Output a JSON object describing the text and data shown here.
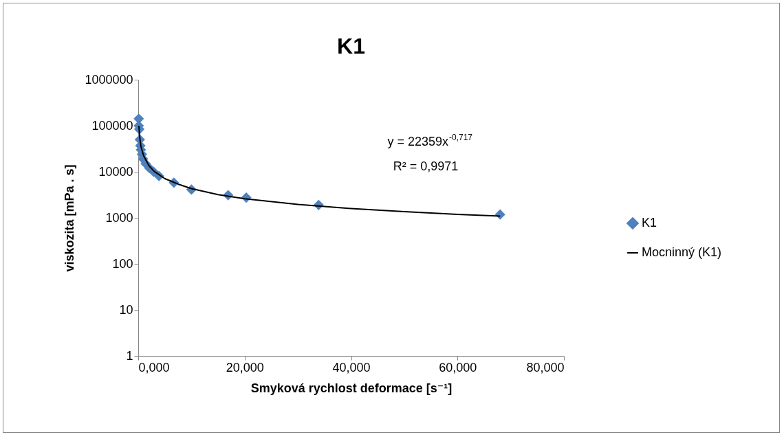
{
  "chart_data": {
    "type": "scatter",
    "title": "K1",
    "xlabel": "Smyková rychlost deformace [s⁻¹]",
    "ylabel": "viskozita [mPa . s]",
    "annotations": [
      "y = 22359x$^{-0,717}$",
      "R² = 0,9971"
    ],
    "log": "y",
    "legend": "right",
    "grid": false,
    "xlim": [
      0,
      80
    ],
    "xticks": [
      {
        "value": 0,
        "label": "0,000"
      },
      {
        "value": 20,
        "label": "20,000"
      },
      {
        "value": 40,
        "label": "40,000"
      },
      {
        "value": 60,
        "label": "60,000"
      },
      {
        "value": 80,
        "label": "80,000"
      }
    ],
    "ylim": [
      1,
      1000000
    ],
    "yticks": [
      1,
      10,
      100,
      1000,
      10000,
      100000,
      1000000
    ],
    "series": [
      {
        "name": "K1",
        "marker": "diamond",
        "color": "#4f81bd",
        "x": [
          0.1,
          0.1,
          0.2,
          0.3,
          0.4,
          0.5,
          0.7,
          0.9,
          1.4,
          2.1,
          2.9,
          3.9,
          6.7,
          10.0,
          16.9,
          20.3,
          33.9,
          68.0
        ],
        "values": [
          142000,
          100000,
          84000,
          50000,
          37000,
          30000,
          24000,
          19000,
          15000,
          12000,
          10000,
          8100,
          5800,
          4100,
          3100,
          2750,
          1900,
          1180
        ]
      },
      {
        "name": "Mocninný (K1)",
        "type": "line",
        "color": "#000000",
        "x": [
          0.12,
          0.3,
          0.5,
          1,
          2,
          3,
          5,
          7.5,
          10,
          15,
          20,
          30,
          40,
          50,
          60,
          68
        ],
        "values": [
          100000,
          53000,
          36000,
          22400,
          13600,
          10200,
          7100,
          5400,
          4300,
          3200,
          2600,
          1950,
          1590,
          1360,
          1190,
          1090
        ]
      }
    ]
  }
}
